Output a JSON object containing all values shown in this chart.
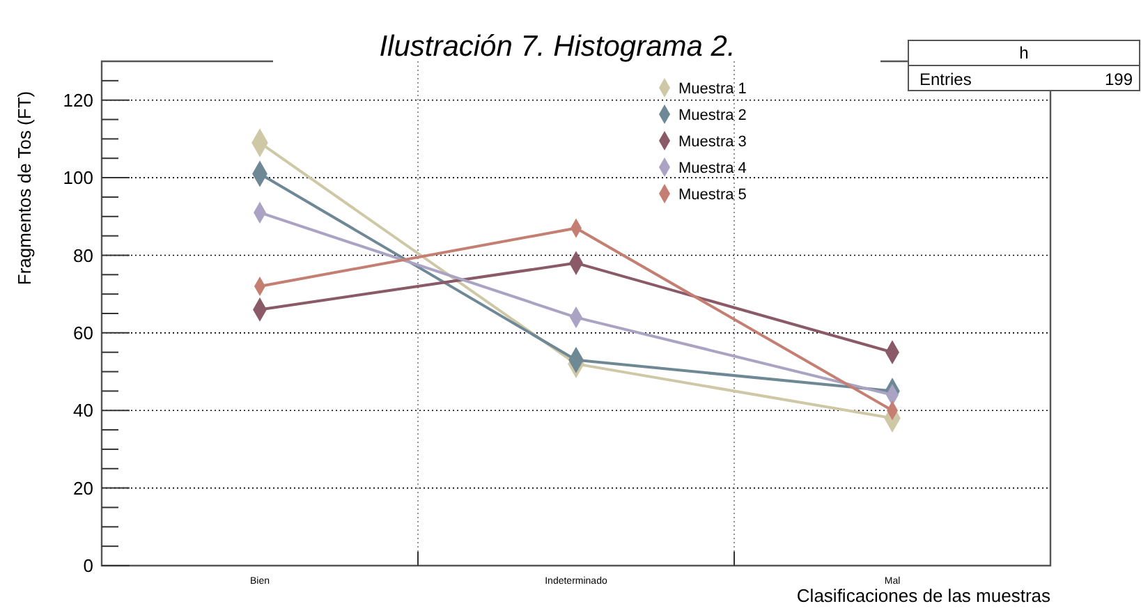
{
  "chart_data": {
    "type": "line",
    "title": "Ilustración 7. Histograma 2.",
    "xlabel": "Clasificaciones de las muestras",
    "ylabel": "Fragmentos de Tos (FT)",
    "categories": [
      "Bien",
      "Indeterminado",
      "Mal"
    ],
    "series": [
      {
        "name": "Muestra 1",
        "color": "#cfc8a6",
        "values": [
          109,
          52,
          38
        ]
      },
      {
        "name": "Muestra 2",
        "color": "#6f8896",
        "values": [
          101,
          53,
          45
        ]
      },
      {
        "name": "Muestra 3",
        "color": "#8b5a68",
        "values": [
          66,
          78,
          55
        ]
      },
      {
        "name": "Muestra 4",
        "color": "#aaa3c3",
        "values": [
          91,
          64,
          44
        ]
      },
      {
        "name": "Muestra 5",
        "color": "#c47f72",
        "values": [
          72,
          87,
          40
        ]
      }
    ],
    "ylim": [
      0,
      130
    ],
    "yticks": [
      0,
      {
        "value": 5,
        "label": null
      },
      {
        "value": 10,
        "label": null
      },
      {
        "value": 15,
        "label": null
      },
      20,
      {
        "value": 25,
        "label": null
      },
      {
        "value": 30,
        "label": null
      },
      {
        "value": 35,
        "label": null
      },
      40,
      {
        "value": 45,
        "label": null
      },
      {
        "value": 50,
        "label": null
      },
      {
        "value": 55,
        "label": null
      },
      60,
      {
        "value": 65,
        "label": null
      },
      {
        "value": 70,
        "label": null
      },
      {
        "value": 75,
        "label": null
      },
      80,
      {
        "value": 85,
        "label": null
      },
      {
        "value": 90,
        "label": null
      },
      {
        "value": 95,
        "label": null
      },
      100,
      {
        "value": 105,
        "label": null
      },
      {
        "value": 110,
        "label": null
      },
      {
        "value": 115,
        "label": null
      },
      120,
      {
        "value": 125,
        "label": null
      }
    ],
    "grid": true,
    "legend": "top",
    "marker": "diamond",
    "line_style": "solid",
    "annotations": [
      "h",
      "Entries",
      "199"
    ]
  }
}
